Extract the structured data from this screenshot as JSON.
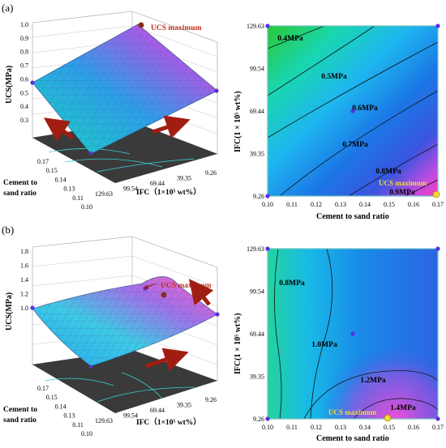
{
  "figure": {
    "panels": [
      {
        "label": "(a)",
        "surface": {
          "type": "surface3d",
          "zlabel": "UCS(MPa)",
          "z_ticks": [
            "0.3",
            "0.4",
            "0.5",
            "0.6",
            "0.7",
            "0.8",
            "0.9",
            "1.0"
          ],
          "x_label": [
            "Cement to",
            "sand ratio"
          ],
          "x_ticks": [
            "0.17",
            "0.15",
            "0.14",
            "0.13",
            "0.11",
            "0.10"
          ],
          "y_label": "IFC（1×10⁵ wt%）",
          "y_ticks": [
            "129.63",
            "99.54",
            "69.44",
            "39.35",
            "9.26"
          ],
          "annotation": "UCS maximum"
        },
        "contour": {
          "type": "contour",
          "xlabel": "Cement to sand ratio",
          "ylabel": "IFC(1 × 10⁵ wt%)",
          "x_ticks": [
            "0.10",
            "0.11",
            "0.12",
            "0.13",
            "0.14",
            "0.15",
            "0.16",
            "0.17"
          ],
          "y_ticks": [
            "129.63",
            "99.54",
            "69.44",
            "39.35",
            "9.26"
          ],
          "contour_labels": [
            "0.4MPa",
            "0.5MPa",
            "0.6MPa",
            "0.7MPa",
            "0.8MPa",
            "0.9MPa"
          ],
          "annotation": "UCS maximum"
        }
      },
      {
        "label": "(b)",
        "surface": {
          "type": "surface3d",
          "zlabel": "UCS(MPa)",
          "z_ticks": [
            "1.0",
            "1.2",
            "1.4",
            "1.6",
            "1.8"
          ],
          "x_label": [
            "Cement to",
            "sand ratio"
          ],
          "x_ticks": [
            "0.17",
            "0.15",
            "0.14",
            "0.13",
            "0.11",
            "0.10"
          ],
          "y_label": "IFC（1×10⁵ wt%）",
          "y_ticks": [
            "129.63",
            "99.54",
            "69.44",
            "39.35",
            "9.26"
          ],
          "annotation": "UCS maximum"
        },
        "contour": {
          "type": "contour",
          "xlabel": "Cement to sand ratio",
          "ylabel": "IFC(1 × 10⁵ wt%)",
          "x_ticks": [
            "0.10",
            "0.11",
            "0.12",
            "0.13",
            "0.14",
            "0.15",
            "0.16",
            "0.17"
          ],
          "y_ticks": [
            "129.63",
            "99.54",
            "69.44",
            "39.35",
            "9.26"
          ],
          "contour_labels": [
            "0.8MPa",
            "1.0MPa",
            "1.2MPa",
            "1.4MPa"
          ],
          "annotation": "UCS maximum"
        }
      }
    ]
  },
  "chart_data": [
    {
      "type": "contour",
      "panel": "(a)",
      "xlabel": "Cement to sand ratio",
      "ylabel": "IFC(1 × 10⁵ wt%)",
      "xlim": [
        0.1,
        0.17
      ],
      "ylim": [
        9.26,
        129.63
      ],
      "contour_levels_MPa": [
        0.4,
        0.5,
        0.6,
        0.7,
        0.8,
        0.9
      ],
      "design_points": [
        {
          "x": 0.1,
          "y": 129.63
        },
        {
          "x": 0.17,
          "y": 129.63
        },
        {
          "x": 0.1,
          "y": 9.26
        },
        {
          "x": 0.17,
          "y": 9.26
        },
        {
          "x": 0.135,
          "y": 69.44
        }
      ],
      "ucs_maximum": {
        "x": 0.17,
        "y": 9.26
      }
    },
    {
      "type": "contour",
      "panel": "(b)",
      "xlabel": "Cement to sand ratio",
      "ylabel": "IFC(1 × 10⁵ wt%)",
      "xlim": [
        0.1,
        0.17
      ],
      "ylim": [
        9.26,
        129.63
      ],
      "contour_levels_MPa": [
        0.8,
        1.0,
        1.2,
        1.4
      ],
      "design_points": [
        {
          "x": 0.1,
          "y": 129.63
        },
        {
          "x": 0.17,
          "y": 129.63
        },
        {
          "x": 0.1,
          "y": 9.26
        },
        {
          "x": 0.17,
          "y": 9.26
        },
        {
          "x": 0.135,
          "y": 69.44
        }
      ],
      "ucs_maximum": {
        "x": 0.145,
        "y": 9.26
      }
    }
  ]
}
